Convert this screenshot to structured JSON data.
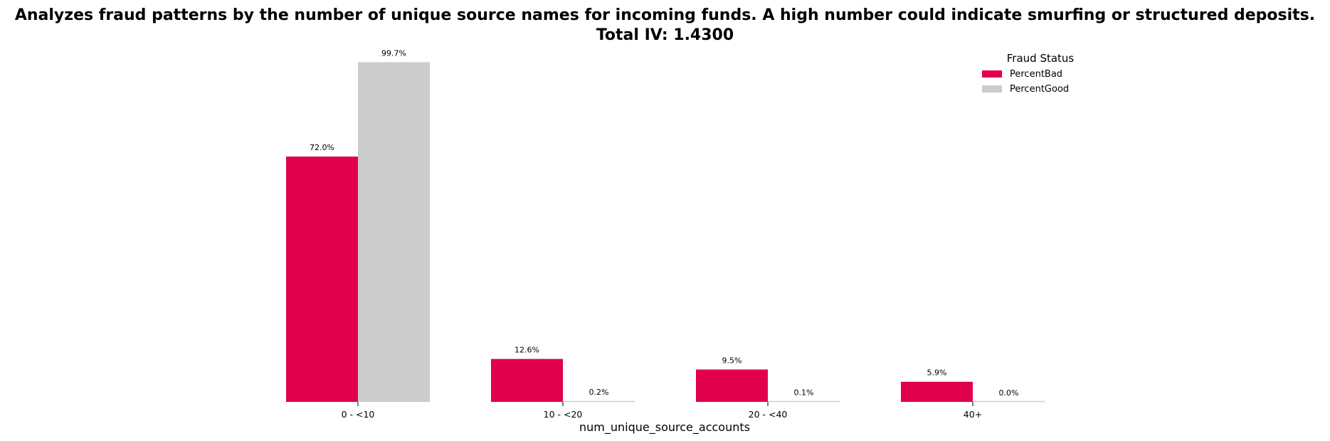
{
  "chart_data": {
    "type": "bar",
    "title": "Analyzes fraud patterns by the number of unique source names for incoming funds. A high number could indicate smurfing or structured deposits.",
    "subtitle": "Total IV: 1.4300",
    "xlabel": "num_unique_source_accounts",
    "ylabel": "",
    "categories": [
      "0 - <10",
      "10 - <20",
      "20 - <40",
      "40+"
    ],
    "series": [
      {
        "name": "PercentBad",
        "color": "#e0004d",
        "values": [
          72.0,
          12.6,
          9.5,
          5.9
        ],
        "labels": [
          "72.0%",
          "12.6%",
          "9.5%",
          "5.9%"
        ]
      },
      {
        "name": "PercentGood",
        "color": "#cccccc",
        "values": [
          99.7,
          0.2,
          0.1,
          0.0
        ],
        "labels": [
          "99.7%",
          "0.2%",
          "0.1%",
          "0.0%"
        ]
      }
    ],
    "ylim": [
      0,
      100
    ],
    "grid": false,
    "legend": {
      "title": "Fraud Status",
      "position": "top-right"
    }
  }
}
